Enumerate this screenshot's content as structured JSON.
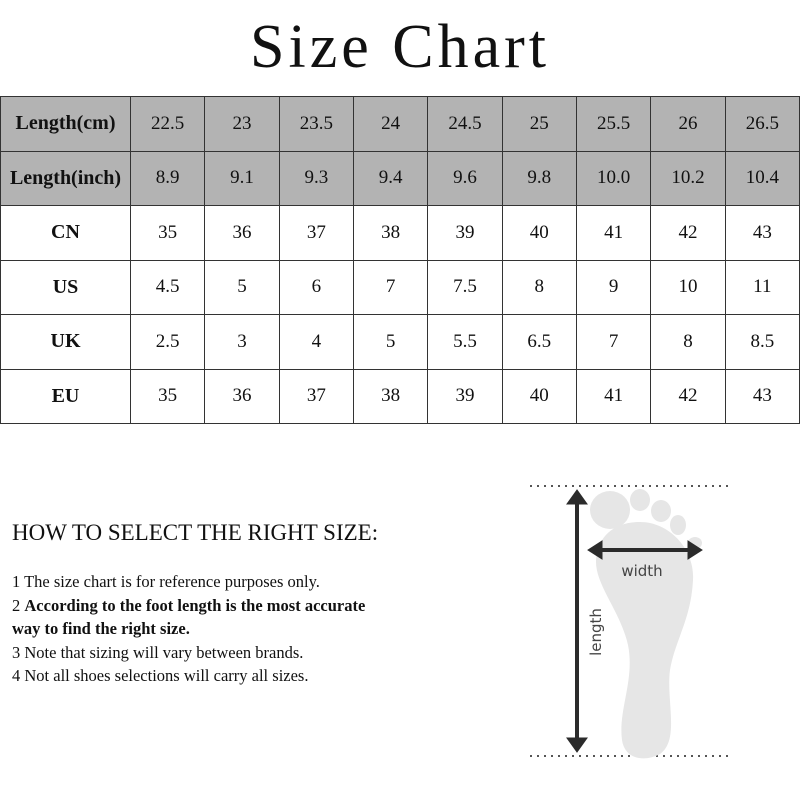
{
  "title": "Size Chart",
  "table": {
    "rows": [
      {
        "label": "Length(cm)",
        "shaded": true,
        "values": [
          "22.5",
          "23",
          "23.5",
          "24",
          "24.5",
          "25",
          "25.5",
          "26",
          "26.5"
        ]
      },
      {
        "label": "Length(inch)",
        "shaded": true,
        "values": [
          "8.9",
          "9.1",
          "9.3",
          "9.4",
          "9.6",
          "9.8",
          "10.0",
          "10.2",
          "10.4"
        ]
      },
      {
        "label": "CN",
        "shaded": false,
        "values": [
          "35",
          "36",
          "37",
          "38",
          "39",
          "40",
          "41",
          "42",
          "43"
        ]
      },
      {
        "label": "US",
        "shaded": false,
        "values": [
          "4.5",
          "5",
          "6",
          "7",
          "7.5",
          "8",
          "9",
          "10",
          "11"
        ]
      },
      {
        "label": "UK",
        "shaded": false,
        "values": [
          "2.5",
          "3",
          "4",
          "5",
          "5.5",
          "6.5",
          "7",
          "8",
          "8.5"
        ]
      },
      {
        "label": "EU",
        "shaded": false,
        "values": [
          "35",
          "36",
          "37",
          "38",
          "39",
          "40",
          "41",
          "42",
          "43"
        ]
      }
    ]
  },
  "howto": {
    "heading": "HOW TO SELECT THE RIGHT SIZE:",
    "note1": "1 The size chart is for reference purposes only.",
    "note2_num": "2 ",
    "note2_bold": "According to the foot length is the most accurate way to find the right size.",
    "note3": "3 Note that sizing will vary between brands.",
    "note4": "4 Not all shoes selections will carry all sizes."
  },
  "diagram": {
    "width_label": "width",
    "length_label": "length"
  },
  "colors": {
    "header_gray": "#b3b3b3",
    "foot": "#e6e6e6",
    "arrow": "#2b2b2b"
  }
}
